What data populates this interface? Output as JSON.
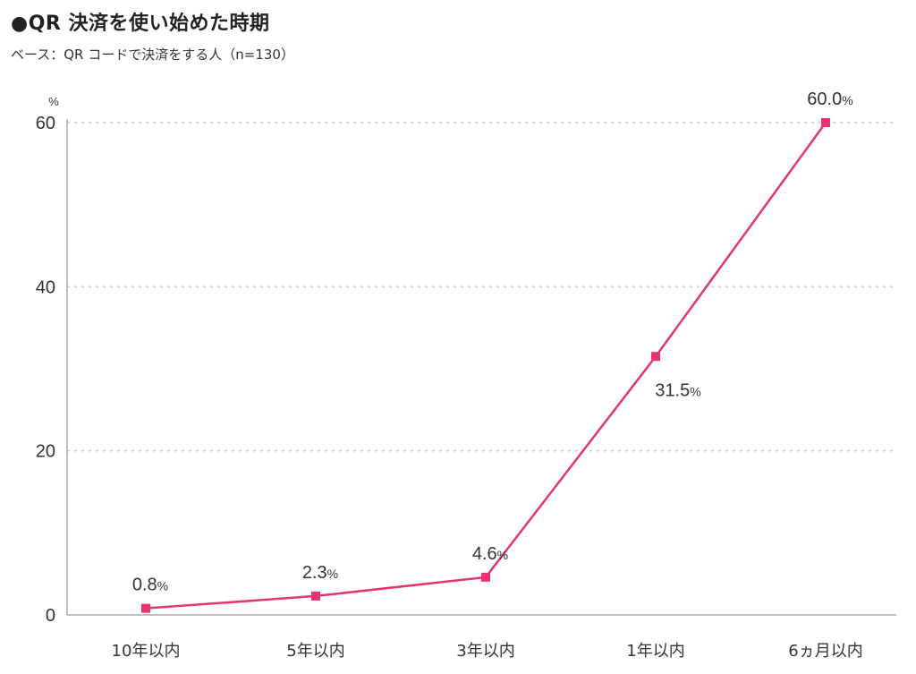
{
  "title": "●QR 決済を使い始めた時期",
  "subtitle": "ベース：QR コードで決済をする人（n=130）",
  "colors": {
    "series": "#e8336f",
    "grid": "#cccccc",
    "axis": "#999999"
  },
  "chart_data": {
    "type": "line",
    "categories": [
      "10年以内",
      "5年以内",
      "3年以内",
      "1年以内",
      "6ヵ月以内"
    ],
    "values": [
      0.8,
      2.3,
      4.6,
      31.5,
      60.0
    ],
    "data_labels": [
      "0.8",
      "2.3",
      "4.6",
      "31.5",
      "60.0"
    ],
    "data_label_unit": "%",
    "y_unit": "%",
    "yticks": [
      "0",
      "20",
      "40",
      "60"
    ],
    "ylim": [
      0,
      60
    ],
    "grid": true
  }
}
